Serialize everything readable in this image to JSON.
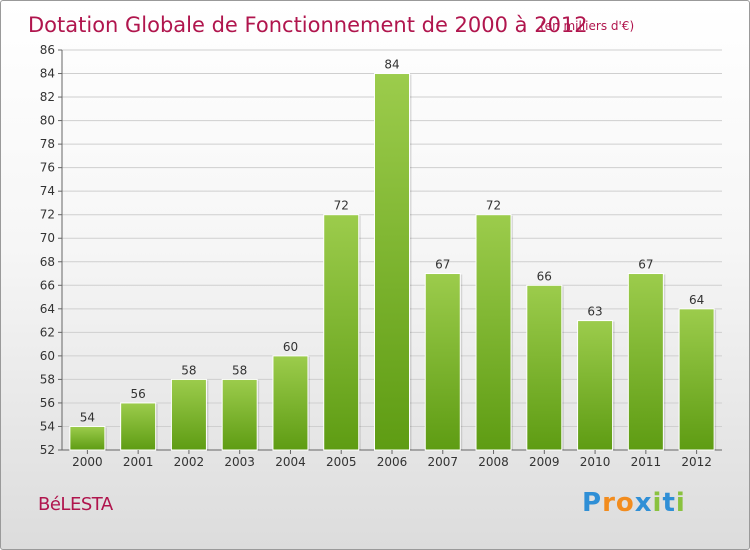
{
  "header": {
    "title": "Dotation Globale de Fonctionnement de 2000 à 2012",
    "subtitle": "(en milliers d'€)"
  },
  "footer": {
    "commune": "BéLESTA",
    "brand": "Proxiti",
    "brand_letters": [
      {
        "ch": "P",
        "color": "#2f8fd6"
      },
      {
        "ch": "r",
        "color": "#f28c1e"
      },
      {
        "ch": "o",
        "color": "#f28c1e"
      },
      {
        "ch": "x",
        "color": "#2f8fd6"
      },
      {
        "ch": "i",
        "color": "#8ac23f"
      },
      {
        "ch": "t",
        "color": "#2f8fd6"
      },
      {
        "ch": "i",
        "color": "#8ac23f"
      }
    ]
  },
  "colors": {
    "title": "#b0154d",
    "bar_light": "#9ccc4c",
    "bar_dark": "#5e9c13",
    "grid": "#cfcfcf"
  },
  "chart_data": {
    "type": "bar",
    "title": "Dotation Globale de Fonctionnement de 2000 à 2012",
    "subtitle": "(en milliers d'€)",
    "categories": [
      "2000",
      "2001",
      "2002",
      "2003",
      "2004",
      "2005",
      "2006",
      "2007",
      "2008",
      "2009",
      "2010",
      "2011",
      "2012"
    ],
    "values": [
      54,
      56,
      58,
      58,
      60,
      72,
      84,
      67,
      72,
      66,
      63,
      67,
      64
    ],
    "ylim": [
      52,
      86
    ],
    "yticks": [
      52,
      54,
      56,
      58,
      60,
      62,
      64,
      66,
      68,
      70,
      72,
      74,
      76,
      78,
      80,
      82,
      84,
      86
    ],
    "grid": true,
    "legend": "none"
  }
}
